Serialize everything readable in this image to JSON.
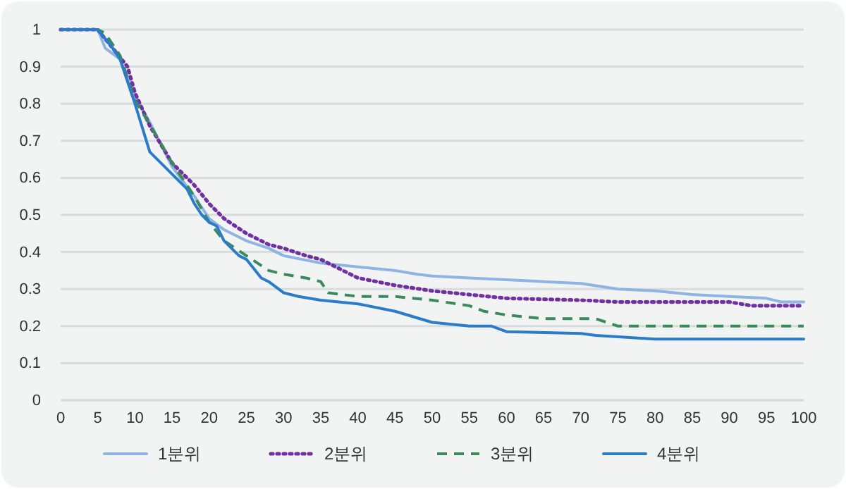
{
  "chart_data": {
    "type": "line",
    "xlim": [
      0,
      100
    ],
    "xticks": [
      0,
      5,
      10,
      15,
      20,
      25,
      30,
      35,
      40,
      45,
      50,
      55,
      60,
      65,
      70,
      75,
      80,
      85,
      90,
      95,
      100
    ],
    "ylim": [
      0,
      1
    ],
    "yticks": [
      0,
      0.1,
      0.2,
      0.3,
      0.4,
      0.5,
      0.6,
      0.7,
      0.8,
      0.9,
      1
    ],
    "grid": "y",
    "legend": "bottom",
    "marker": "none",
    "series": [
      {
        "name": "1분위",
        "color": "#8db4e2",
        "line_style": "solid",
        "x": [
          0,
          5,
          6,
          8,
          10,
          12,
          15,
          18,
          20,
          22,
          25,
          28,
          30,
          35,
          40,
          45,
          48,
          50,
          55,
          60,
          65,
          70,
          75,
          80,
          85,
          90,
          95,
          97,
          100
        ],
        "values": [
          1,
          1,
          0.95,
          0.92,
          0.82,
          0.75,
          0.63,
          0.55,
          0.49,
          0.46,
          0.43,
          0.41,
          0.39,
          0.37,
          0.36,
          0.35,
          0.34,
          0.335,
          0.33,
          0.325,
          0.32,
          0.315,
          0.3,
          0.295,
          0.285,
          0.28,
          0.275,
          0.265,
          0.265
        ]
      },
      {
        "name": "2분위",
        "color": "#7030a0",
        "line_style": "dotted",
        "x": [
          0,
          5,
          7,
          9,
          10,
          12,
          15,
          18,
          20,
          22,
          25,
          28,
          30,
          33,
          35,
          38,
          40,
          45,
          50,
          55,
          60,
          70,
          75,
          80,
          90,
          93,
          100
        ],
        "values": [
          1,
          1,
          0.95,
          0.9,
          0.83,
          0.74,
          0.64,
          0.58,
          0.53,
          0.49,
          0.45,
          0.42,
          0.41,
          0.39,
          0.38,
          0.35,
          0.33,
          0.31,
          0.295,
          0.285,
          0.275,
          0.27,
          0.265,
          0.265,
          0.265,
          0.255,
          0.255
        ]
      },
      {
        "name": "3분위",
        "color": "#3a8a5c",
        "line_style": "dashed",
        "x": [
          0,
          5,
          6,
          8,
          10,
          13,
          15,
          18,
          20,
          22,
          25,
          28,
          30,
          33,
          35,
          36,
          40,
          45,
          50,
          55,
          57,
          60,
          65,
          72,
          75,
          100
        ],
        "values": [
          1,
          1,
          0.99,
          0.93,
          0.81,
          0.71,
          0.64,
          0.55,
          0.48,
          0.43,
          0.39,
          0.35,
          0.34,
          0.33,
          0.32,
          0.29,
          0.28,
          0.28,
          0.27,
          0.255,
          0.24,
          0.23,
          0.22,
          0.22,
          0.2,
          0.2
        ]
      },
      {
        "name": "4분위",
        "color": "#2a7bc8",
        "line_style": "solid",
        "x": [
          0,
          5,
          7,
          8,
          10,
          12,
          13,
          15,
          17,
          18,
          19,
          20,
          21,
          22,
          24,
          25,
          27,
          28,
          30,
          32,
          35,
          40,
          45,
          50,
          55,
          58,
          60,
          70,
          72,
          80,
          100
        ],
        "values": [
          1,
          1,
          0.95,
          0.92,
          0.8,
          0.67,
          0.65,
          0.61,
          0.57,
          0.53,
          0.5,
          0.48,
          0.47,
          0.43,
          0.39,
          0.38,
          0.33,
          0.32,
          0.29,
          0.28,
          0.27,
          0.26,
          0.24,
          0.21,
          0.2,
          0.2,
          0.185,
          0.18,
          0.175,
          0.165,
          0.165
        ]
      }
    ]
  }
}
